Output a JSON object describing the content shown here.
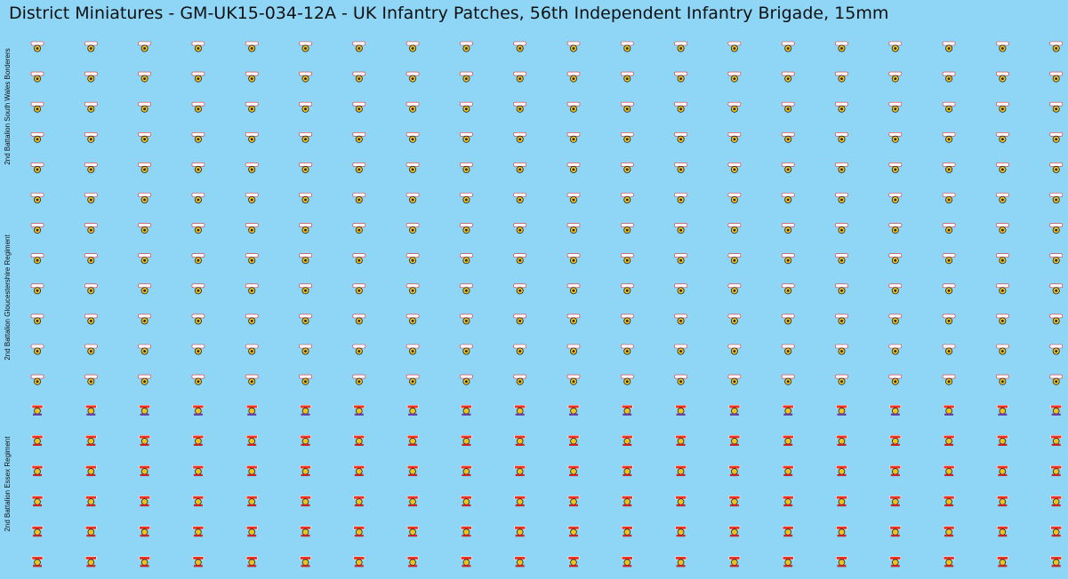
{
  "header": {
    "title": "District Miniatures - GM-UK15-034-12A - UK Infantry Patches, 56th Independent Infantry Brigade, 15mm"
  },
  "sections": [
    {
      "label": "2nd Battalion South Wales Borderers"
    },
    {
      "label": "2nd Battalion Gloucestershire Regiment"
    },
    {
      "label": "2nd Battalion Essex Regiment"
    }
  ]
}
